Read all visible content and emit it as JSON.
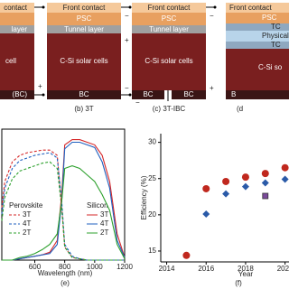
{
  "diagrams": [
    {
      "texts": [
        "contact",
        "layer",
        "cell",
        "(BC)"
      ],
      "signs": [
        "+"
      ]
    },
    {
      "texts": [
        "Front contact",
        "PSC",
        "Tunnel layer",
        "C-Si solar cells",
        "BC"
      ],
      "caption": "(b) 3T",
      "signs": [
        "−",
        "+",
        "−"
      ]
    },
    {
      "texts": [
        "Front contact",
        "PSC",
        "Tunnel layer",
        "C-Si solar cells",
        "BC",
        "BC"
      ],
      "caption": "(c) 3T-IBC",
      "signs": [
        "−",
        "+",
        "−"
      ]
    },
    {
      "texts": [
        "Front contact",
        "PSC",
        "TC",
        "Physical",
        "TC",
        "C-Si so",
        "B"
      ],
      "caption": "(d"
    }
  ],
  "chart_data": [
    {
      "type": "line",
      "xlabel": "Wavelength (nm)",
      "caption": "(e)",
      "xlim": [
        380,
        1200
      ],
      "ylim": [
        0,
        100
      ],
      "xticks": [
        600,
        800,
        1000,
        1200
      ],
      "x": [
        380,
        400,
        450,
        500,
        550,
        600,
        650,
        700,
        750,
        780,
        800,
        850,
        900,
        950,
        1000,
        1050,
        1100,
        1150,
        1200
      ],
      "groups": [
        {
          "name": "Perovskite",
          "dashed": true,
          "series": [
            {
              "name": "3T",
              "color": "#d62728",
              "values": [
                40,
                60,
                75,
                80,
                82,
                83,
                84,
                84,
                80,
                40,
                10,
                2,
                1,
                0,
                0,
                0,
                0,
                0,
                0
              ]
            },
            {
              "name": "4T",
              "color": "#1f5fbf",
              "values": [
                35,
                55,
                70,
                76,
                78,
                80,
                81,
                82,
                78,
                45,
                12,
                3,
                1,
                0,
                0,
                0,
                0,
                0,
                0
              ]
            },
            {
              "name": "2T",
              "color": "#2ca02c",
              "values": [
                30,
                48,
                62,
                68,
                70,
                72,
                74,
                75,
                70,
                40,
                10,
                2,
                1,
                0,
                0,
                0,
                0,
                0,
                0
              ]
            }
          ]
        },
        {
          "name": "Silicon",
          "dashed": false,
          "series": [
            {
              "name": "3T",
              "color": "#d62728",
              "values": [
                0,
                0,
                0,
                1,
                2,
                3,
                4,
                6,
                15,
                50,
                88,
                92,
                92,
                90,
                88,
                80,
                60,
                20,
                2
              ]
            },
            {
              "name": "4T",
              "color": "#1f5fbf",
              "values": [
                0,
                0,
                0,
                1,
                2,
                3,
                4,
                5,
                12,
                45,
                85,
                90,
                90,
                88,
                86,
                75,
                55,
                15,
                2
              ]
            },
            {
              "name": "2T",
              "color": "#2ca02c",
              "values": [
                0,
                0,
                0,
                2,
                3,
                5,
                8,
                12,
                20,
                45,
                70,
                72,
                70,
                65,
                60,
                50,
                38,
                12,
                1
              ]
            }
          ]
        }
      ]
    },
    {
      "type": "scatter",
      "xlabel": "Year",
      "ylabel": "Efficiency (%)",
      "caption": "(f)",
      "xlim": [
        2013.7,
        2020.2
      ],
      "ylim": [
        13.5,
        31.2
      ],
      "xticks": [
        2014,
        2016,
        2018,
        2020
      ],
      "yticks": [
        15,
        20,
        25,
        30
      ],
      "series": [
        {
          "marker": "circle",
          "color": "#c0281e",
          "x": [
            2015,
            2016,
            2017,
            2018,
            2019,
            2020
          ],
          "values": [
            14.4,
            23.6,
            24.6,
            25.2,
            25.7,
            26.5
          ]
        },
        {
          "marker": "diamond",
          "color": "#2a5aa8",
          "x": [
            2016,
            2017,
            2018,
            2019,
            2020
          ],
          "values": [
            20.1,
            22.9,
            23.9,
            24.4,
            24.9
          ]
        },
        {
          "marker": "square",
          "color": "#7a4a9a",
          "x": [
            2019
          ],
          "values": [
            22.6
          ]
        }
      ]
    }
  ]
}
